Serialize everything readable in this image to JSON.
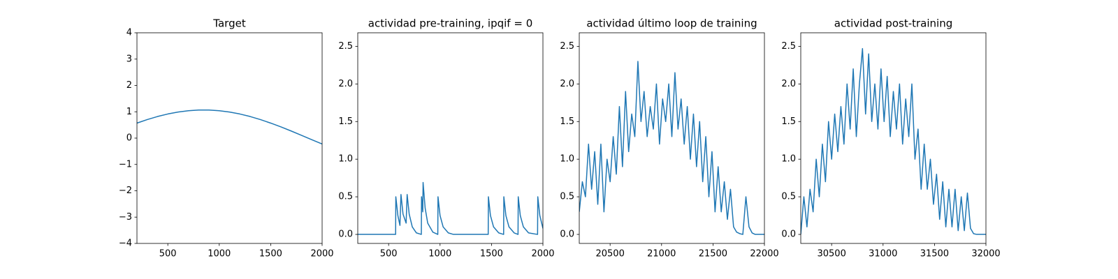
{
  "chart_data": [
    {
      "type": "line",
      "title": "Target",
      "color": "#1f77b4",
      "x": [
        200,
        300,
        400,
        500,
        600,
        700,
        800,
        900,
        1000,
        1100,
        1200,
        1300,
        1400,
        1500,
        1600,
        1700,
        1800,
        1900,
        2000
      ],
      "values": [
        0.57,
        0.704,
        0.82,
        0.916,
        0.991,
        1.041,
        1.067,
        1.067,
        1.041,
        0.991,
        0.916,
        0.82,
        0.704,
        0.57,
        0.425,
        0.268,
        0.105,
        -0.061,
        -0.225
      ],
      "xlim": [
        200,
        2000
      ],
      "ylim": [
        -4,
        4
      ],
      "xticks": [
        500,
        1000,
        1500,
        2000
      ],
      "yticks": [
        {
          "value": -4,
          "label": "−4"
        },
        {
          "value": -3,
          "label": "−3"
        },
        {
          "value": -2,
          "label": "−2"
        },
        {
          "value": -1,
          "label": "−1"
        },
        0,
        1,
        2,
        3,
        4
      ]
    },
    {
      "type": "line",
      "title": "actividad pre-training, ipqif = 0",
      "color": "#1f77b4",
      "x": [
        200,
        568,
        570,
        590,
        610,
        620,
        640,
        670,
        680,
        700,
        730,
        770,
        818,
        820,
        832,
        835,
        855,
        880,
        930,
        978,
        980,
        1000,
        1030,
        1080,
        1130,
        1468,
        1470,
        1490,
        1520,
        1570,
        1618,
        1620,
        1640,
        1670,
        1720,
        1758,
        1760,
        1780,
        1810,
        1860,
        1948,
        1950,
        1970,
        2000
      ],
      "values": [
        0,
        0,
        0.5,
        0.25,
        0.12,
        0.53,
        0.27,
        0.15,
        0.53,
        0.27,
        0.1,
        0.02,
        0,
        0.5,
        0.3,
        0.69,
        0.35,
        0.15,
        0.03,
        0,
        0.5,
        0.25,
        0.1,
        0.02,
        0,
        0,
        0.5,
        0.25,
        0.1,
        0.02,
        0,
        0.5,
        0.25,
        0.1,
        0.02,
        0,
        0.5,
        0.25,
        0.1,
        0.02,
        0,
        0.5,
        0.25,
        0.08
      ],
      "xlim": [
        200,
        2000
      ],
      "ylim": [
        -0.12,
        2.68
      ],
      "xticks": [
        500,
        1000,
        1500,
        2000
      ],
      "yticks": [
        {
          "value": 0,
          "label": "0.0"
        },
        0.5,
        {
          "value": 1,
          "label": "1.0"
        },
        1.5,
        {
          "value": 2,
          "label": "2.0"
        },
        2.5
      ]
    },
    {
      "type": "line",
      "title": "actividad último loop de training",
      "color": "#1f77b4",
      "x": [
        20200,
        20230,
        20260,
        20290,
        20320,
        20350,
        20380,
        20410,
        20440,
        20470,
        20500,
        20530,
        20560,
        20590,
        20620,
        20650,
        20680,
        20710,
        20740,
        20770,
        20800,
        20830,
        20860,
        20890,
        20920,
        20950,
        20980,
        21010,
        21040,
        21070,
        21100,
        21130,
        21160,
        21190,
        21220,
        21250,
        21280,
        21310,
        21340,
        21370,
        21400,
        21430,
        21460,
        21490,
        21520,
        21550,
        21580,
        21610,
        21640,
        21670,
        21700,
        21730,
        21760,
        21790,
        21820,
        21850,
        21880,
        21910,
        21940,
        21970,
        22000
      ],
      "values": [
        0.3,
        0.7,
        0.5,
        1.2,
        0.6,
        1.1,
        0.4,
        1.2,
        0.3,
        1.0,
        0.7,
        1.3,
        0.8,
        1.7,
        0.9,
        1.9,
        1.1,
        1.6,
        1.3,
        2.3,
        1.5,
        1.9,
        1.3,
        1.7,
        1.4,
        2.0,
        1.2,
        1.8,
        1.5,
        2.0,
        1.3,
        2.15,
        1.4,
        1.8,
        1.2,
        1.7,
        1.0,
        1.6,
        0.9,
        1.5,
        0.7,
        1.3,
        0.5,
        1.1,
        0.3,
        0.9,
        0.3,
        0.7,
        0.2,
        0.6,
        0.1,
        0.03,
        0.01,
        0,
        0.5,
        0.1,
        0.02,
        0,
        0,
        0,
        0
      ],
      "xlim": [
        20200,
        22000
      ],
      "ylim": [
        -0.12,
        2.68
      ],
      "xticks": [
        20500,
        21000,
        21500,
        22000
      ],
      "yticks": [
        {
          "value": 0,
          "label": "0.0"
        },
        0.5,
        {
          "value": 1,
          "label": "1.0"
        },
        1.5,
        {
          "value": 2,
          "label": "2.0"
        },
        2.5
      ]
    },
    {
      "type": "line",
      "title": "actividad post-training",
      "color": "#1f77b4",
      "x": [
        30200,
        30230,
        30260,
        30290,
        30320,
        30350,
        30380,
        30410,
        30440,
        30470,
        30500,
        30530,
        30560,
        30590,
        30620,
        30650,
        30680,
        30710,
        30740,
        30770,
        30800,
        30830,
        30860,
        30890,
        30920,
        30950,
        30980,
        31010,
        31040,
        31070,
        31100,
        31130,
        31160,
        31190,
        31220,
        31250,
        31280,
        31310,
        31340,
        31370,
        31400,
        31430,
        31460,
        31490,
        31520,
        31550,
        31580,
        31610,
        31640,
        31670,
        31700,
        31730,
        31760,
        31790,
        31820,
        31850,
        31880,
        31910,
        31940,
        31970,
        32000
      ],
      "values": [
        0,
        0.5,
        0.1,
        0.6,
        0.3,
        1.0,
        0.5,
        1.2,
        0.7,
        1.5,
        1.0,
        1.6,
        1.1,
        1.7,
        1.2,
        2.0,
        1.4,
        2.2,
        1.3,
        2.0,
        2.47,
        1.6,
        2.4,
        1.5,
        2.0,
        1.4,
        2.2,
        1.5,
        2.1,
        1.3,
        1.9,
        1.4,
        2.0,
        1.2,
        1.8,
        1.3,
        2.0,
        1.0,
        1.4,
        0.6,
        1.2,
        0.6,
        1.0,
        0.4,
        0.8,
        0.2,
        0.7,
        0.1,
        0.6,
        0.1,
        0.6,
        0.05,
        0.5,
        0.05,
        0.55,
        0.08,
        0.01,
        0,
        0,
        0,
        0
      ],
      "xlim": [
        30200,
        32000
      ],
      "ylim": [
        -0.12,
        2.68
      ],
      "xticks": [
        30500,
        31000,
        31500,
        32000
      ],
      "yticks": [
        {
          "value": 0,
          "label": "0.0"
        },
        0.5,
        {
          "value": 1,
          "label": "1.0"
        },
        1.5,
        {
          "value": 2,
          "label": "2.0"
        },
        2.5
      ]
    }
  ]
}
